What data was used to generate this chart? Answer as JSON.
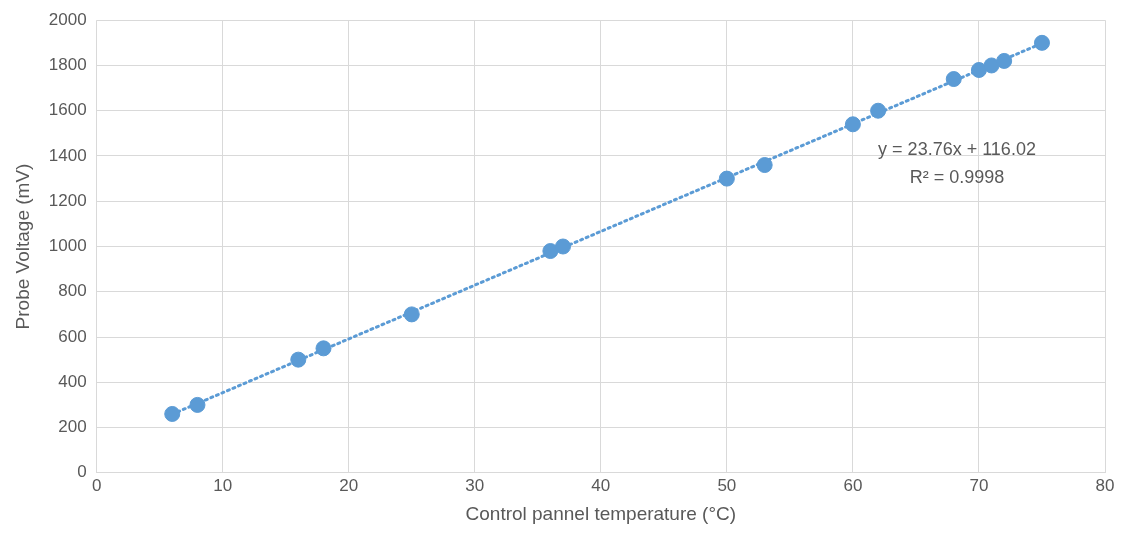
{
  "chart_data": {
    "type": "scatter",
    "xlabel": "Control pannel temperature (°C)",
    "ylabel": "Probe Voltage (mV)",
    "xlim": [
      0,
      80
    ],
    "xticks": [
      0,
      10,
      20,
      30,
      40,
      50,
      60,
      70,
      80
    ],
    "ylim": [
      0,
      2000
    ],
    "yticks": [
      0,
      200,
      400,
      600,
      800,
      1000,
      1200,
      1400,
      1600,
      1800,
      2000
    ],
    "grid": true,
    "legend": false,
    "series": [
      {
        "type": "scatter",
        "color": "#5b9bd5",
        "marker": "circle",
        "x": [
          6,
          8,
          16,
          18,
          25,
          36,
          37,
          50,
          53,
          60,
          62,
          68,
          70,
          71,
          72,
          75
        ],
        "values": [
          260,
          300,
          500,
          550,
          700,
          980,
          1000,
          1300,
          1360,
          1540,
          1600,
          1740,
          1780,
          1800,
          1820,
          1900
        ]
      },
      {
        "type": "line",
        "color": "#5b9bd5",
        "line_style": "dotted",
        "marker": "none",
        "x": [
          6,
          75
        ],
        "values": [
          259,
          1898
        ]
      }
    ],
    "annotations": [
      "y = 23.76x + 116.02",
      "R² = 0.9998"
    ]
  }
}
